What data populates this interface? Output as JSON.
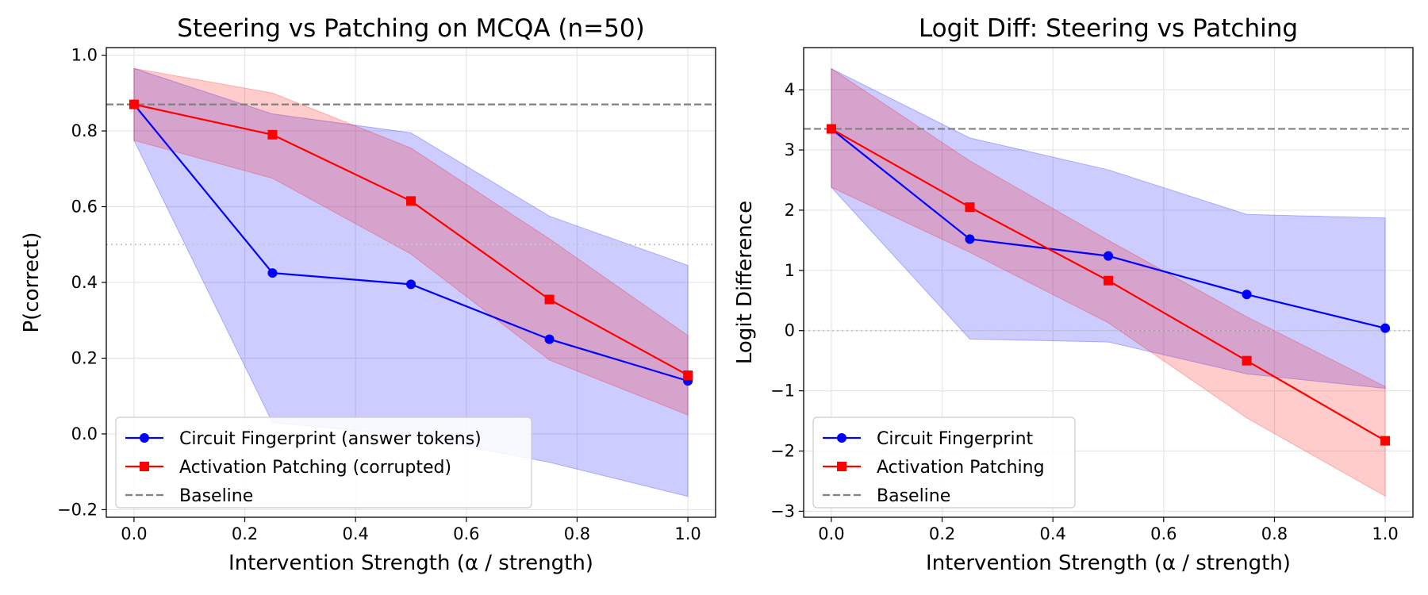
{
  "colors": {
    "fingerprint": "#0000ff",
    "patching": "#ff0000",
    "baseline": "#808080",
    "reference": "#c8c8c8",
    "grid": "#e6e6e6"
  },
  "chart_data": [
    {
      "type": "line",
      "title": "Steering vs Patching on MCQA (n=50)",
      "xlabel": "Intervention Strength (α / strength)",
      "ylabel": "P(correct)",
      "xlim": [
        -0.05,
        1.05
      ],
      "ylim": [
        -0.22,
        1.02
      ],
      "xticks": [
        0.0,
        0.2,
        0.4,
        0.6,
        0.8,
        1.0
      ],
      "xtick_labels": [
        "0.0",
        "0.2",
        "0.4",
        "0.6",
        "0.8",
        "1.0"
      ],
      "yticks": [
        -0.2,
        0.0,
        0.2,
        0.4,
        0.6,
        0.8,
        1.0
      ],
      "ytick_labels": [
        "−0.2",
        "0.0",
        "0.2",
        "0.4",
        "0.6",
        "0.8",
        "1.0"
      ],
      "grid": true,
      "legend_position": "lower-left",
      "baseline": 0.87,
      "reference_line": 0.5,
      "series": [
        {
          "name": "Circuit Fingerprint (answer tokens)",
          "marker": "circle",
          "x": [
            0.0,
            0.25,
            0.5,
            0.75,
            1.0
          ],
          "values": [
            0.87,
            0.425,
            0.395,
            0.25,
            0.14
          ],
          "band_lower": [
            0.775,
            0.03,
            -0.005,
            -0.075,
            -0.165
          ],
          "band_upper": [
            0.965,
            0.845,
            0.795,
            0.575,
            0.445
          ]
        },
        {
          "name": "Activation Patching (corrupted)",
          "marker": "square",
          "x": [
            0.0,
            0.25,
            0.5,
            0.75,
            1.0
          ],
          "values": [
            0.87,
            0.79,
            0.615,
            0.355,
            0.155
          ],
          "band_lower": [
            0.775,
            0.675,
            0.475,
            0.195,
            0.05
          ],
          "band_upper": [
            0.965,
            0.9,
            0.755,
            0.515,
            0.26
          ]
        }
      ],
      "legend": [
        "Circuit Fingerprint (answer tokens)",
        "Activation Patching (corrupted)",
        "Baseline"
      ]
    },
    {
      "type": "line",
      "title": "Logit Diff: Steering vs Patching",
      "xlabel": "Intervention Strength (α / strength)",
      "ylabel": "Logit Difference",
      "xlim": [
        -0.05,
        1.05
      ],
      "ylim": [
        -3.1,
        4.7
      ],
      "xticks": [
        0.0,
        0.2,
        0.4,
        0.6,
        0.8,
        1.0
      ],
      "xtick_labels": [
        "0.0",
        "0.2",
        "0.4",
        "0.6",
        "0.8",
        "1.0"
      ],
      "yticks": [
        -3,
        -2,
        -1,
        0,
        1,
        2,
        3,
        4
      ],
      "ytick_labels": [
        "−3",
        "−2",
        "−1",
        "0",
        "1",
        "2",
        "3",
        "4"
      ],
      "grid": true,
      "legend_position": "lower-left",
      "baseline": 3.35,
      "reference_line": 0.0,
      "series": [
        {
          "name": "Circuit Fingerprint",
          "marker": "circle",
          "x": [
            0.0,
            0.25,
            0.5,
            0.75,
            1.0
          ],
          "values": [
            3.35,
            1.52,
            1.24,
            0.6,
            0.04
          ],
          "band_lower": [
            2.38,
            -0.14,
            -0.19,
            -0.72,
            -0.96
          ],
          "band_upper": [
            4.35,
            3.2,
            2.67,
            1.93,
            1.87
          ]
        },
        {
          "name": "Activation Patching",
          "marker": "square",
          "x": [
            0.0,
            0.25,
            0.5,
            0.75,
            1.0
          ],
          "values": [
            3.35,
            2.05,
            0.83,
            -0.5,
            -1.83
          ],
          "band_lower": [
            2.38,
            1.3,
            0.13,
            -1.45,
            -2.75
          ],
          "band_upper": [
            4.35,
            2.82,
            1.5,
            0.23,
            -0.93
          ]
        }
      ],
      "legend": [
        "Circuit Fingerprint",
        "Activation Patching",
        "Baseline"
      ]
    }
  ]
}
